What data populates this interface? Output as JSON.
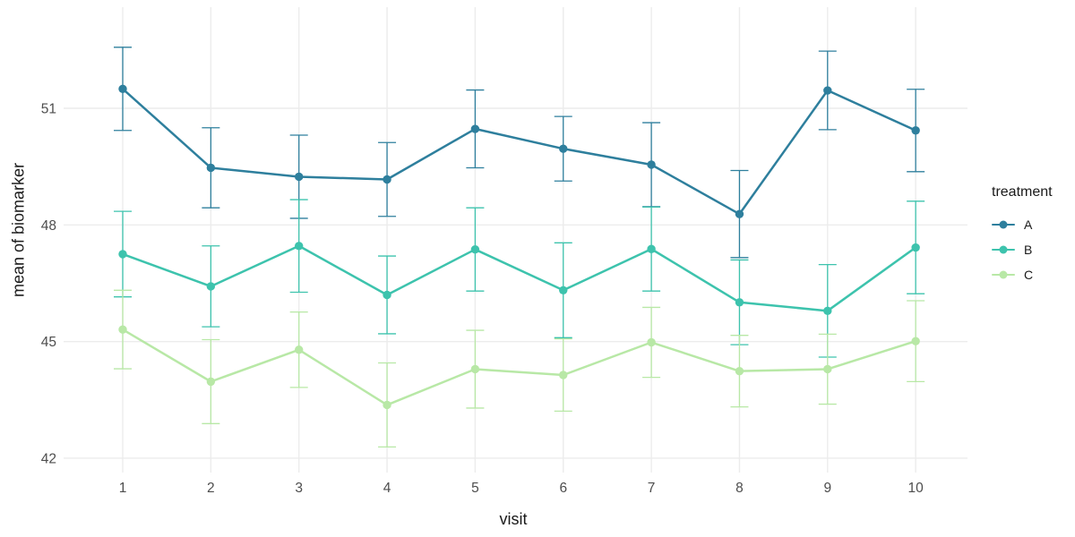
{
  "figure": {
    "background_color": "#ffffff",
    "grid_color": "#ececec",
    "tick_label_color": "#4d4d4d",
    "axis_title_color": "#1a1a1a"
  },
  "chart_data": {
    "type": "line",
    "title": "",
    "xlabel": "visit",
    "ylabel": "mean of biomarker",
    "legend_title": "treatment",
    "legend_position": "right",
    "grid": "major gridlines only, light gray on white, no axis lines or tick marks",
    "error_bars": true,
    "x": [
      1,
      2,
      3,
      4,
      5,
      6,
      7,
      8,
      9,
      10
    ],
    "yticks": [
      42,
      45,
      48,
      51
    ],
    "ylim": [
      41.6,
      53.6
    ],
    "series": [
      {
        "name": "A",
        "color": "#2e7f9d",
        "values": [
          51.5,
          49.47,
          49.24,
          49.17,
          50.47,
          49.96,
          49.55,
          48.28,
          51.46,
          50.43
        ],
        "errors": [
          1.07,
          1.03,
          1.07,
          0.95,
          1.0,
          0.83,
          1.08,
          1.12,
          1.01,
          1.06
        ]
      },
      {
        "name": "B",
        "color": "#3dc3ad",
        "values": [
          47.25,
          46.42,
          47.46,
          46.2,
          47.37,
          46.32,
          47.38,
          46.01,
          45.79,
          47.42
        ],
        "errors": [
          1.1,
          1.04,
          1.19,
          1.0,
          1.07,
          1.22,
          1.08,
          1.09,
          1.19,
          1.19
        ]
      },
      {
        "name": "C",
        "color": "#b8e8a6",
        "values": [
          45.31,
          43.97,
          44.79,
          43.37,
          44.29,
          44.14,
          44.98,
          44.24,
          44.29,
          45.01
        ],
        "errors": [
          1.01,
          1.08,
          0.97,
          1.08,
          1.0,
          0.93,
          0.9,
          0.92,
          0.9,
          1.04
        ]
      }
    ]
  }
}
